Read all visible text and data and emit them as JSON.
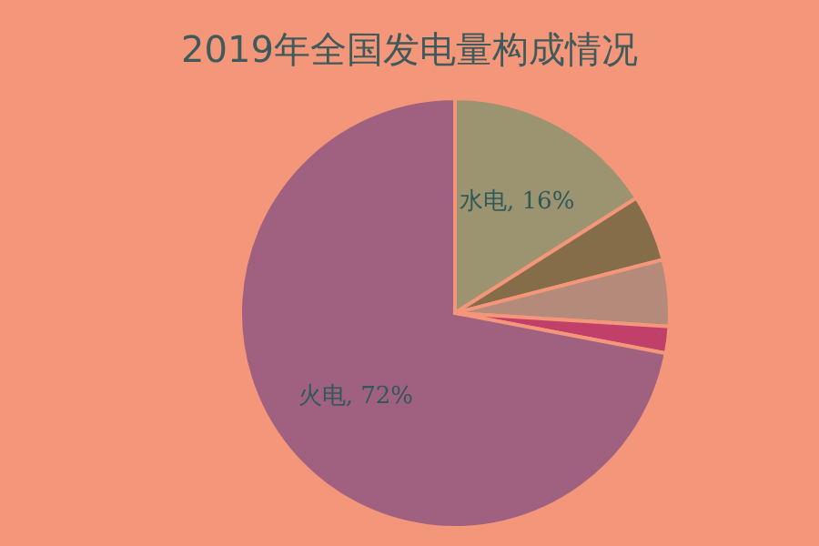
{
  "chart_data": {
    "type": "pie",
    "title": "2019年全国发电量构成情况",
    "categories": [
      "水电",
      null,
      null,
      null,
      "火电"
    ],
    "values": [
      16,
      5,
      5,
      2,
      72
    ],
    "colors": [
      "#9c9470",
      "#856d4a",
      "#b48a7a",
      "#c0406a",
      "#a06080"
    ],
    "value_labels": [
      "16%",
      null,
      null,
      null,
      "72%"
    ]
  }
}
